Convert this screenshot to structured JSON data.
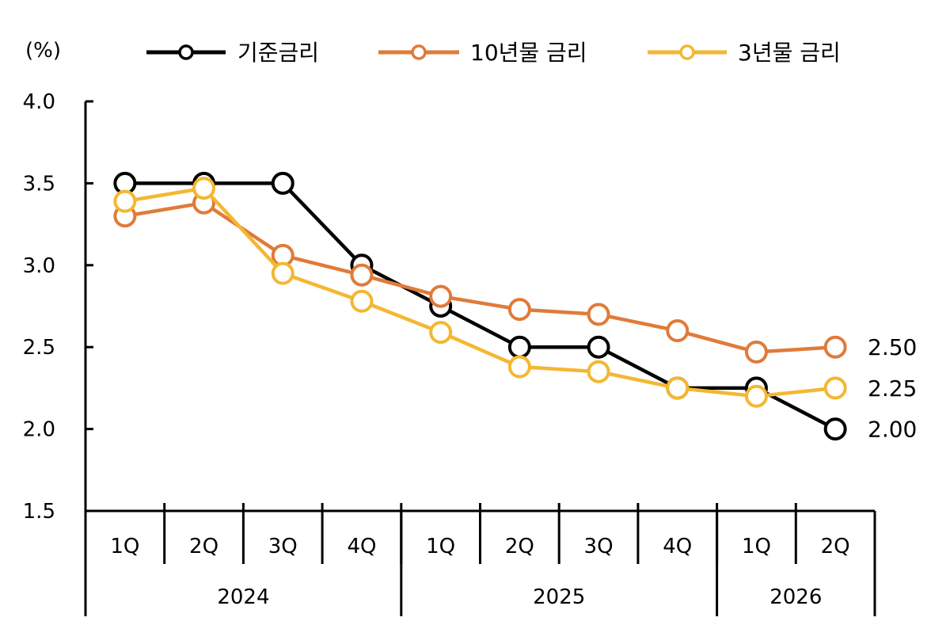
{
  "chart_data": {
    "type": "line",
    "unit_label": "(%)",
    "ylim": [
      1.5,
      4.0
    ],
    "y_ticks": [
      "4.0",
      "3.5",
      "3.0",
      "2.5",
      "2.0",
      "1.5"
    ],
    "categories": [
      "1Q",
      "2Q",
      "3Q",
      "4Q",
      "1Q",
      "2Q",
      "3Q",
      "4Q",
      "1Q",
      "2Q"
    ],
    "year_groups": [
      {
        "label": "2024",
        "span": 4
      },
      {
        "label": "2025",
        "span": 4
      },
      {
        "label": "2026",
        "span": 2
      }
    ],
    "legend_position": "top",
    "grid": false,
    "series": [
      {
        "name": "기준금리",
        "color": "#000000",
        "values": [
          3.5,
          3.5,
          3.5,
          3.0,
          2.75,
          2.5,
          2.5,
          2.25,
          2.25,
          2.0
        ],
        "end_label": "2.00"
      },
      {
        "name": "10년물 금리",
        "color": "#E07B39",
        "values": [
          3.3,
          3.38,
          3.06,
          2.94,
          2.81,
          2.73,
          2.7,
          2.6,
          2.47,
          2.5
        ],
        "end_label": "2.50"
      },
      {
        "name": "3년물 금리",
        "color": "#F4B731",
        "values": [
          3.39,
          3.47,
          2.95,
          2.78,
          2.59,
          2.38,
          2.35,
          2.25,
          2.2,
          2.25
        ],
        "end_label": "2.25"
      }
    ]
  }
}
